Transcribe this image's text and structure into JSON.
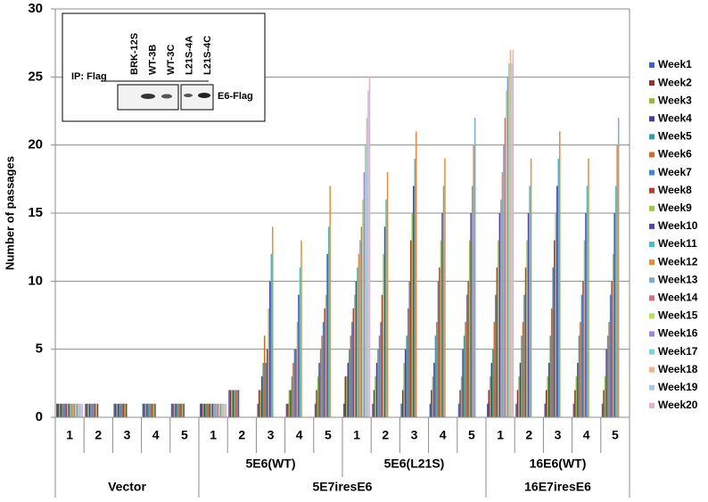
{
  "chart_data": {
    "type": "bar",
    "ylabel": "Number of passages",
    "ylim": [
      0,
      30
    ],
    "yticks": [
      0,
      5,
      10,
      15,
      20,
      25,
      30
    ],
    "grid": true,
    "legend": "right",
    "groups": [
      {
        "name": "Vector",
        "subgroups": [
          {
            "name": null,
            "categories": [
              "1",
              "2",
              "3",
              "4",
              "5"
            ]
          }
        ]
      },
      {
        "name": "5E7iresE6",
        "subgroups": [
          {
            "name": "5E6(WT)",
            "categories": [
              "1",
              "2",
              "3",
              "4",
              "5"
            ]
          },
          {
            "name": "5E6(L21S)",
            "categories": [
              "1",
              "2",
              "3",
              "4",
              "5"
            ]
          }
        ]
      },
      {
        "name": "16E7iresE6",
        "subgroups": [
          {
            "name": "16E6(WT)",
            "categories": [
              "1",
              "2",
              "3",
              "4",
              "5"
            ]
          }
        ]
      }
    ],
    "series": [
      {
        "name": "Week1",
        "color": "#3a64c4",
        "values": [
          1,
          1,
          1,
          1,
          1,
          1,
          2,
          1,
          1,
          1,
          1,
          1,
          1,
          1,
          1,
          1,
          1,
          1,
          1,
          1
        ]
      },
      {
        "name": "Week2",
        "color": "#9b2c2c",
        "values": [
          1,
          1,
          1,
          1,
          1,
          1,
          2,
          2,
          1,
          2,
          3,
          2,
          2,
          2,
          2,
          2,
          2,
          2,
          2,
          2
        ]
      },
      {
        "name": "Week3",
        "color": "#8fbf2f",
        "values": [
          1,
          1,
          1,
          1,
          1,
          1,
          2,
          2,
          2,
          3,
          3,
          3,
          4,
          3,
          3,
          3,
          3,
          3,
          3,
          3
        ]
      },
      {
        "name": "Week4",
        "color": "#4b3c9e",
        "values": [
          1,
          1,
          1,
          1,
          1,
          1,
          2,
          3,
          2,
          4,
          4,
          4,
          5,
          4,
          5,
          4,
          4,
          4,
          4,
          5
        ]
      },
      {
        "name": "Week5",
        "color": "#2ea3a8",
        "values": [
          1,
          1,
          1,
          1,
          1,
          1,
          2,
          4,
          3,
          5,
          5,
          5,
          6,
          6,
          6,
          5,
          6,
          6,
          6,
          6
        ]
      },
      {
        "name": "Week6",
        "color": "#d9691e",
        "values": [
          1,
          1,
          1,
          1,
          1,
          1,
          2,
          6,
          4,
          6,
          6,
          6,
          8,
          7,
          7,
          7,
          7,
          8,
          7,
          7
        ]
      },
      {
        "name": "Week7",
        "color": "#3f86e0",
        "values": [
          1,
          1,
          1,
          1,
          1,
          1,
          2,
          4,
          5,
          7,
          7,
          7,
          10,
          10,
          9,
          9,
          9,
          11,
          9,
          9
        ]
      },
      {
        "name": "Week8",
        "color": "#c0392b",
        "values": [
          1,
          1,
          1,
          1,
          1,
          1,
          2,
          5,
          5,
          8,
          8,
          9,
          13,
          11,
          10,
          11,
          11,
          13,
          10,
          10
        ]
      },
      {
        "name": "Week9",
        "color": "#9bcb3b",
        "values": [
          1,
          1,
          1,
          1,
          1,
          1,
          null,
          8,
          7,
          9,
          9,
          12,
          15,
          13,
          13,
          13,
          13,
          15,
          13,
          12
        ]
      },
      {
        "name": "Week10",
        "color": "#5a3fc0",
        "values": [
          1,
          1,
          1,
          1,
          1,
          1,
          null,
          10,
          9,
          12,
          10,
          14,
          17,
          15,
          15,
          15,
          15,
          17,
          15,
          15
        ]
      },
      {
        "name": "Week11",
        "color": "#40c0d0",
        "values": [
          1,
          null,
          null,
          null,
          null,
          1,
          null,
          12,
          11,
          14,
          11,
          16,
          19,
          17,
          17,
          16,
          17,
          19,
          17,
          17
        ]
      },
      {
        "name": "Week12",
        "color": "#f08a30",
        "values": [
          1,
          null,
          null,
          null,
          null,
          1,
          null,
          14,
          13,
          17,
          12,
          18,
          21,
          19,
          20,
          18,
          19,
          21,
          19,
          20
        ]
      },
      {
        "name": "Week13",
        "color": "#7ea8e0",
        "values": [
          1,
          null,
          null,
          null,
          null,
          1,
          null,
          null,
          null,
          null,
          13,
          null,
          null,
          null,
          22,
          20,
          null,
          null,
          null,
          22
        ]
      },
      {
        "name": "Week14",
        "color": "#d9707a",
        "values": [
          1,
          null,
          null,
          null,
          null,
          1,
          null,
          null,
          null,
          null,
          14,
          null,
          null,
          null,
          null,
          22,
          null,
          null,
          null,
          null
        ]
      },
      {
        "name": "Week15",
        "color": "#b5e05a",
        "values": [
          1,
          null,
          null,
          null,
          null,
          1,
          null,
          null,
          null,
          null,
          16,
          null,
          null,
          null,
          null,
          24,
          null,
          null,
          null,
          null
        ]
      },
      {
        "name": "Week16",
        "color": "#9a86d8",
        "values": [
          1,
          null,
          null,
          null,
          null,
          1,
          null,
          null,
          null,
          null,
          18,
          null,
          null,
          null,
          null,
          25,
          null,
          null,
          null,
          null
        ]
      },
      {
        "name": "Week17",
        "color": "#70d8e0",
        "values": [
          1,
          null,
          null,
          null,
          null,
          1,
          null,
          null,
          null,
          null,
          20,
          null,
          null,
          null,
          null,
          26,
          null,
          null,
          null,
          null
        ]
      },
      {
        "name": "Week18",
        "color": "#f8ae80",
        "values": [
          1,
          null,
          null,
          null,
          null,
          1,
          null,
          null,
          null,
          null,
          22,
          null,
          null,
          null,
          null,
          27,
          null,
          null,
          null,
          null
        ]
      },
      {
        "name": "Week19",
        "color": "#a8c8ec",
        "values": [
          1,
          null,
          null,
          null,
          null,
          1,
          null,
          null,
          null,
          null,
          24,
          null,
          null,
          null,
          null,
          26,
          null,
          null,
          null,
          null
        ]
      },
      {
        "name": "Week20",
        "color": "#eab0c0",
        "values": [
          1,
          null,
          null,
          null,
          null,
          1,
          null,
          null,
          null,
          null,
          25,
          null,
          null,
          null,
          null,
          27,
          null,
          null,
          null,
          null
        ]
      }
    ],
    "inset": {
      "ip_label": "IP: Flag",
      "lanes": [
        "BRK-12S",
        "WT-3B",
        "WT-3C",
        "L21S-4A",
        "L21S-4C"
      ],
      "band_label": "E6-Flag"
    }
  }
}
